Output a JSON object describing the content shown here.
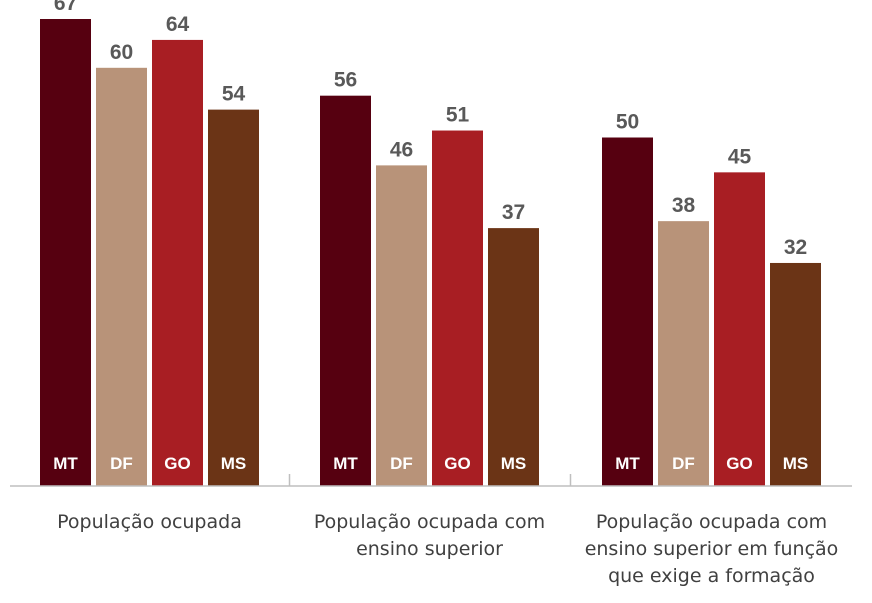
{
  "chart_data": {
    "type": "bar",
    "categories": [
      "População ocupada",
      "População ocupada com ensino superior",
      "População ocupada com ensino superior em função que exige a formação"
    ],
    "category_lines": [
      [
        "População ocupada"
      ],
      [
        "População ocupada com",
        "ensino superior"
      ],
      [
        "População ocupada com",
        "ensino superior em função",
        "que exige a formação"
      ]
    ],
    "series": [
      {
        "name": "MT",
        "color": "#560010",
        "values": [
          67,
          56,
          50
        ]
      },
      {
        "name": "DF",
        "color": "#b89379",
        "values": [
          60,
          46,
          38
        ]
      },
      {
        "name": "GO",
        "color": "#a81e23",
        "values": [
          64,
          51,
          45
        ]
      },
      {
        "name": "MS",
        "color": "#6b3416",
        "values": [
          54,
          37,
          32
        ]
      }
    ],
    "ylim": [
      0,
      70
    ],
    "grid": false,
    "title": "",
    "xlabel": "",
    "ylabel": ""
  }
}
